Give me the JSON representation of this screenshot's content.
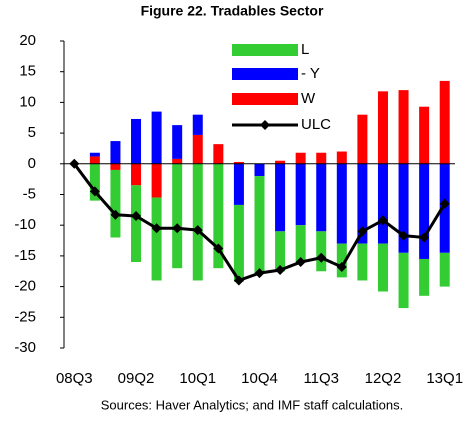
{
  "chart_data": {
    "type": "bar",
    "title": "Figure 22. Tradables Sector",
    "source": "Sources: Haver Analytics; and IMF staff calculations.",
    "categories": [
      "08Q3",
      null,
      null,
      "09Q2",
      null,
      null,
      "10Q1",
      null,
      null,
      "10Q4",
      null,
      null,
      "11Q3",
      null,
      null,
      "12Q2",
      null,
      null,
      "13Q1"
    ],
    "series": [
      {
        "name": "L",
        "color": "#33cc33",
        "values": [
          0,
          -6,
          -11,
          -12.5,
          -13.5,
          -17,
          -19,
          -17,
          -12.5,
          -15.8,
          -6.5,
          -6,
          -6.5,
          -5.5,
          -6,
          -7.8,
          -9,
          -6,
          -5.5
        ]
      },
      {
        "name": "- Y",
        "color": "#0000ff",
        "values": [
          0,
          0.6,
          3.7,
          7.3,
          8.5,
          5.5,
          3.3,
          0,
          -6.7,
          -2,
          -11,
          -10,
          -11,
          -13,
          -13,
          -13,
          -14.5,
          -15.5,
          -14.5
        ]
      },
      {
        "name": "W",
        "color": "#ff0000",
        "values": [
          0,
          1.2,
          -1,
          -3.5,
          -5.5,
          0.8,
          4.7,
          3.2,
          0.3,
          0,
          0.5,
          1.8,
          1.8,
          2,
          8,
          11.8,
          12,
          9.3,
          13.5
        ]
      },
      {
        "name": "ULC",
        "type": "line",
        "color": "#000000",
        "values": [
          0,
          -4.5,
          -8.3,
          -8.5,
          -10.5,
          -10.5,
          -10.8,
          -13.8,
          -19,
          -17.8,
          -17.3,
          -16,
          -15.3,
          -16.8,
          -11,
          -9.2,
          -11.7,
          -12,
          -6.5
        ]
      }
    ],
    "stacked": true,
    "ylim": [
      -30,
      20
    ],
    "yticks": [
      -30,
      -25,
      -20,
      -15,
      -10,
      -5,
      0,
      5,
      10,
      15,
      20
    ],
    "grid": false,
    "legend": "top"
  }
}
